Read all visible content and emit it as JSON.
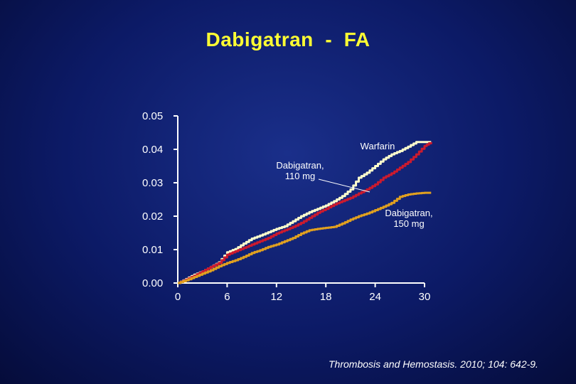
{
  "title": "Dabigatran  -  FA",
  "citation": "Thrombosis and Hemostasis. 2010; 104: 642-9.",
  "chart_data": {
    "type": "line",
    "xlim": [
      0,
      30
    ],
    "ylim": [
      0,
      0.05
    ],
    "x_ticks": [
      "0",
      "6",
      "12",
      "18",
      "24",
      "30"
    ],
    "y_ticks": [
      "0.00",
      "0.01",
      "0.02",
      "0.03",
      "0.04",
      "0.05"
    ],
    "grid": false,
    "series": [
      {
        "name": "Warfarin",
        "color": "#ffffcc",
        "x": [
          0,
          1,
          2,
          3,
          4,
          5,
          6,
          7,
          8,
          9,
          10,
          11,
          12,
          13,
          14,
          15,
          16,
          17,
          18,
          19,
          20,
          21,
          22,
          23,
          24,
          25,
          26,
          27,
          28,
          29,
          30,
          30.8
        ],
        "y": [
          0,
          0.0012,
          0.0025,
          0.0035,
          0.0048,
          0.0062,
          0.0092,
          0.0102,
          0.0118,
          0.0133,
          0.0142,
          0.0152,
          0.0162,
          0.017,
          0.0185,
          0.02,
          0.0212,
          0.0222,
          0.0232,
          0.0245,
          0.026,
          0.028,
          0.0315,
          0.033,
          0.035,
          0.037,
          0.0385,
          0.0395,
          0.0408,
          0.0422,
          0.0422,
          0.0422
        ]
      },
      {
        "name": "Dabigatran, 110 mg",
        "color": "#cc1a2e",
        "x": [
          0,
          1,
          2,
          3,
          4,
          5,
          6,
          7,
          8,
          9,
          10,
          11,
          12,
          13,
          14,
          15,
          16,
          17,
          18,
          19,
          20,
          21,
          22,
          23,
          24,
          25,
          26,
          27,
          28,
          29,
          30,
          30.8
        ],
        "y": [
          0,
          0.001,
          0.0022,
          0.0035,
          0.0048,
          0.006,
          0.0085,
          0.0095,
          0.0105,
          0.0115,
          0.0125,
          0.0135,
          0.0148,
          0.0158,
          0.0168,
          0.018,
          0.0195,
          0.021,
          0.0222,
          0.0235,
          0.0245,
          0.0255,
          0.0268,
          0.028,
          0.0295,
          0.0315,
          0.0328,
          0.0345,
          0.0362,
          0.0385,
          0.041,
          0.0422
        ]
      },
      {
        "name": "Dabigatran, 150 mg",
        "color": "#e0a020",
        "x": [
          0,
          1,
          2,
          3,
          4,
          5,
          6,
          7,
          8,
          9,
          10,
          11,
          12,
          13,
          14,
          15,
          16,
          17,
          18,
          19,
          20,
          21,
          22,
          23,
          24,
          25,
          26,
          27,
          28,
          29,
          30,
          30.8
        ],
        "y": [
          0,
          0.0008,
          0.0018,
          0.0028,
          0.0038,
          0.005,
          0.006,
          0.0068,
          0.0078,
          0.009,
          0.0098,
          0.0108,
          0.0115,
          0.0125,
          0.0135,
          0.0148,
          0.0158,
          0.0162,
          0.0165,
          0.0168,
          0.0178,
          0.019,
          0.02,
          0.0208,
          0.0218,
          0.0228,
          0.024,
          0.0258,
          0.0265,
          0.0268,
          0.027,
          0.027
        ]
      }
    ],
    "annotations": [
      {
        "id": "warfarin",
        "lines": [
          "Warfarin"
        ]
      },
      {
        "id": "dabi110",
        "lines": [
          "Dabigatran,",
          "110 mg"
        ]
      },
      {
        "id": "dabi150",
        "lines": [
          "Dabigatran,",
          "150 mg"
        ]
      }
    ]
  }
}
